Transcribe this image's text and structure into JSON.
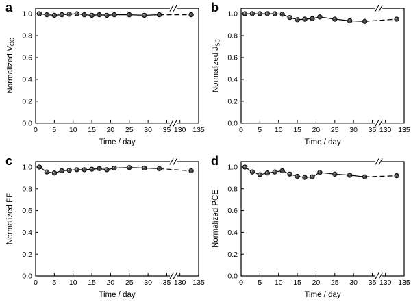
{
  "background": "#ffffff",
  "chart_data": [
    {
      "type": "line",
      "panel": "a",
      "xlabel": "Time / day",
      "ylabel": "Normalized V_OC",
      "ylabel_parts": {
        "prefix": "Normalized ",
        "symbol": "V",
        "sub": "OC",
        "italic_symbol": true
      },
      "x": [
        1,
        3,
        5,
        7,
        9,
        11,
        13,
        15,
        17,
        19,
        21,
        25,
        29,
        33,
        133
      ],
      "y": [
        1.0,
        0.99,
        0.985,
        0.99,
        0.995,
        1.0,
        0.99,
        0.985,
        0.99,
        0.985,
        0.99,
        0.99,
        0.985,
        0.99,
        0.99
      ],
      "xticks": [
        0,
        5,
        10,
        15,
        20,
        25,
        30,
        35,
        130,
        135
      ],
      "yticks": [
        "0.0",
        "0.2",
        "0.4",
        "0.6",
        "0.8",
        "1.0"
      ],
      "ylim": [
        0,
        1.05
      ],
      "axis_break": [
        35,
        130
      ],
      "marker": "circle",
      "line_color": "#000000",
      "marker_fill": "#4a4a4a",
      "grid": false,
      "legend": "none"
    },
    {
      "type": "line",
      "panel": "b",
      "xlabel": "Time / day",
      "ylabel": "Normalized J_SC",
      "ylabel_parts": {
        "prefix": "Normalized ",
        "symbol": "J",
        "sub": "SC",
        "italic_symbol": true
      },
      "x": [
        1,
        3,
        5,
        7,
        9,
        11,
        13,
        15,
        17,
        19,
        21,
        25,
        29,
        33,
        133
      ],
      "y": [
        1.0,
        1.0,
        1.0,
        1.0,
        1.0,
        0.995,
        0.965,
        0.945,
        0.95,
        0.955,
        0.97,
        0.95,
        0.935,
        0.93,
        0.95
      ],
      "xticks": [
        0,
        5,
        10,
        15,
        20,
        25,
        30,
        35,
        130,
        135
      ],
      "yticks": [
        "0.0",
        "0.2",
        "0.4",
        "0.6",
        "0.8",
        "1.0"
      ],
      "ylim": [
        0,
        1.05
      ],
      "axis_break": [
        35,
        130
      ],
      "marker": "circle",
      "line_color": "#000000",
      "marker_fill": "#4a4a4a",
      "grid": false,
      "legend": "none"
    },
    {
      "type": "line",
      "panel": "c",
      "xlabel": "Time / day",
      "ylabel": "Normalized FF",
      "ylabel_parts": {
        "prefix": "Normalized ",
        "symbol": "FF",
        "sub": "",
        "italic_symbol": false
      },
      "x": [
        1,
        3,
        5,
        7,
        9,
        11,
        13,
        15,
        17,
        19,
        21,
        25,
        29,
        33,
        133
      ],
      "y": [
        1.0,
        0.955,
        0.945,
        0.965,
        0.97,
        0.975,
        0.975,
        0.98,
        0.985,
        0.975,
        0.99,
        0.995,
        0.99,
        0.985,
        0.965
      ],
      "xticks": [
        0,
        5,
        10,
        15,
        20,
        25,
        30,
        35,
        130,
        135
      ],
      "yticks": [
        "0.0",
        "0.2",
        "0.4",
        "0.6",
        "0.8",
        "1.0"
      ],
      "ylim": [
        0,
        1.05
      ],
      "axis_break": [
        35,
        130
      ],
      "marker": "circle",
      "line_color": "#000000",
      "marker_fill": "#4a4a4a",
      "grid": false,
      "legend": "none"
    },
    {
      "type": "line",
      "panel": "d",
      "xlabel": "Time / day",
      "ylabel": "Normalized PCE",
      "ylabel_parts": {
        "prefix": "Normalized ",
        "symbol": "PCE",
        "sub": "",
        "italic_symbol": false
      },
      "x": [
        1,
        3,
        5,
        7,
        9,
        11,
        13,
        15,
        17,
        19,
        21,
        25,
        29,
        33,
        133
      ],
      "y": [
        1.0,
        0.955,
        0.93,
        0.945,
        0.955,
        0.965,
        0.935,
        0.915,
        0.905,
        0.91,
        0.95,
        0.935,
        0.925,
        0.91,
        0.92
      ],
      "xticks": [
        0,
        5,
        10,
        15,
        20,
        25,
        30,
        35,
        130,
        135
      ],
      "yticks": [
        "0.0",
        "0.2",
        "0.4",
        "0.6",
        "0.8",
        "1.0"
      ],
      "ylim": [
        0,
        1.05
      ],
      "axis_break": [
        35,
        130
      ],
      "marker": "circle",
      "line_color": "#000000",
      "marker_fill": "#4a4a4a",
      "grid": false,
      "legend": "none"
    }
  ]
}
